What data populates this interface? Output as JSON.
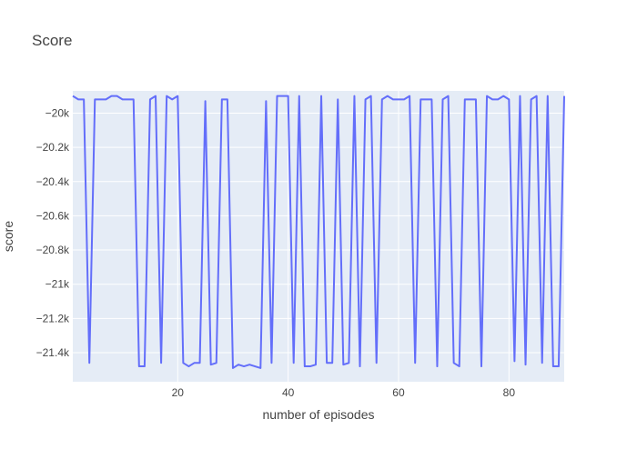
{
  "chart_data": {
    "type": "line",
    "title": "Score",
    "xlabel": "number of episodes",
    "ylabel": "score",
    "xlim": [
      1,
      90
    ],
    "ylim": [
      -21570,
      -19870
    ],
    "x_ticks": [
      20,
      40,
      60,
      80
    ],
    "x_tick_labels": [
      "20",
      "40",
      "60",
      "80"
    ],
    "y_ticks": [
      -20000,
      -20200,
      -20400,
      -20600,
      -20800,
      -21000,
      -21200,
      -21400
    ],
    "y_tick_labels": [
      "−20k",
      "−20.2k",
      "−20.4k",
      "−20.6k",
      "−20.8k",
      "−21k",
      "−21.2k",
      "−21.4k"
    ],
    "grid": true,
    "legend": false,
    "colors": {
      "plot_bg": "#e5ecf6",
      "line": "#636efa",
      "grid": "#ffffff",
      "text": "#444444",
      "title": "#444444"
    },
    "series": [
      {
        "values": [
          -19900,
          -19920,
          -19920,
          -21460,
          -19920,
          -19920,
          -19920,
          -19900,
          -19900,
          -19920,
          -19920,
          -19920,
          -21480,
          -21480,
          -19920,
          -19900,
          -21460,
          -19900,
          -19920,
          -19900,
          -21460,
          -21480,
          -21460,
          -21460,
          -19930,
          -21470,
          -21460,
          -19920,
          -19920,
          -21490,
          -21470,
          -21480,
          -21470,
          -21480,
          -21490,
          -19930,
          -21460,
          -19900,
          -19900,
          -19900,
          -21460,
          -19900,
          -21480,
          -21480,
          -21470,
          -19900,
          -21460,
          -21460,
          -19920,
          -21470,
          -21460,
          -19900,
          -21480,
          -19920,
          -19900,
          -21460,
          -19920,
          -19900,
          -19920,
          -19920,
          -19920,
          -19900,
          -21460,
          -19920,
          -19920,
          -19920,
          -21480,
          -19920,
          -19900,
          -21460,
          -21480,
          -19920,
          -19920,
          -19920,
          -21480,
          -19900,
          -19920,
          -19920,
          -19900,
          -19920,
          -21450,
          -19900,
          -21470,
          -19920,
          -19900,
          -21460,
          -19900,
          -21480,
          -21480,
          -19900
        ]
      }
    ]
  }
}
